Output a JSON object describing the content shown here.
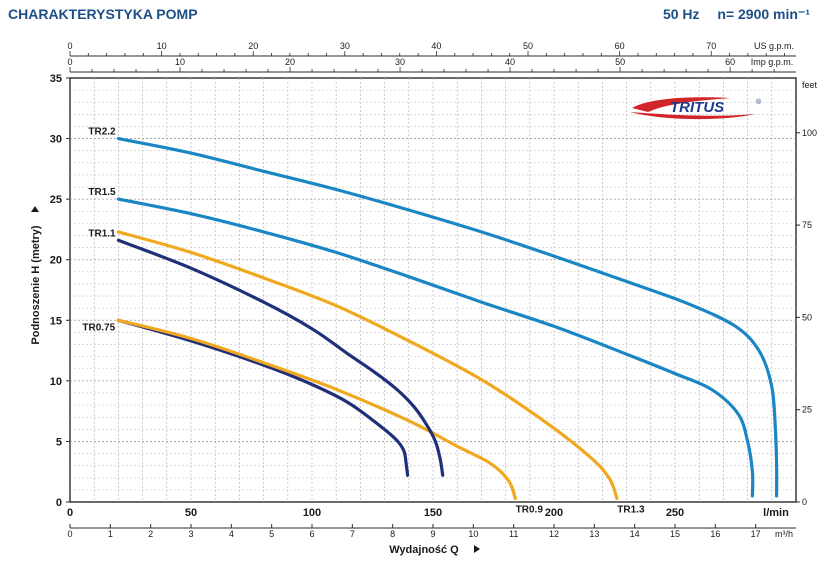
{
  "header": {
    "title": "CHARAKTERYSTYKA POMP",
    "frequency": "50 Hz",
    "speed": "n= 2900 min⁻¹"
  },
  "logo": {
    "text": "TRITUS",
    "mark": "®"
  },
  "chart_data": {
    "type": "line",
    "title": "CHARAKTERYSTYKA POMP",
    "xlabel": "Wydajność Q",
    "ylabel": "Podnoszenie H  (metry)",
    "xlim": [
      0,
      300
    ],
    "ylim": [
      0,
      35
    ],
    "x_unit": "l/min",
    "y_right_unit": "feet",
    "grid": true,
    "axes": {
      "x_lmin_ticks": [
        "0",
        "50",
        "100",
        "150",
        "200",
        "250"
      ],
      "x_m3h_ticks": [
        "0",
        "1",
        "2",
        "3",
        "4",
        "5",
        "6",
        "7",
        "8",
        "9",
        "10",
        "11",
        "12",
        "13",
        "14",
        "15",
        "16",
        "17"
      ],
      "x_m3h_unit": "m³/h",
      "top_usgpm_ticks": [
        "0",
        "10",
        "20",
        "30",
        "40",
        "50",
        "60",
        "70"
      ],
      "top_usgpm_unit": "US g.p.m.",
      "top_impgpm_ticks": [
        "0",
        "10",
        "20",
        "30",
        "40",
        "50",
        "60"
      ],
      "top_impgpm_unit": "Imp g.p.m.",
      "y_ticks": [
        "0",
        "5",
        "10",
        "15",
        "20",
        "25",
        "30",
        "35"
      ],
      "y_feet_ticks": [
        "0",
        "25",
        "50",
        "75",
        "100"
      ]
    },
    "series": [
      {
        "name": "TR0.75",
        "color": "#1f2f7a",
        "points": [
          [
            20,
            15
          ],
          [
            50,
            13.3
          ],
          [
            80,
            11.3
          ],
          [
            100,
            9.7
          ],
          [
            115,
            8.2
          ],
          [
            128,
            6.3
          ],
          [
            135,
            5.1
          ],
          [
            138,
            4.2
          ],
          [
            139,
            3
          ],
          [
            139.5,
            2.2
          ]
        ]
      },
      {
        "name": "TR0.9",
        "color": "#f0a81f",
        "points": [
          [
            20,
            15
          ],
          [
            50,
            13.5
          ],
          [
            80,
            11.5
          ],
          [
            110,
            9.3
          ],
          [
            140,
            6.7
          ],
          [
            160,
            4.6
          ],
          [
            172,
            3.4
          ],
          [
            178,
            2.5
          ],
          [
            182,
            1.5
          ],
          [
            184,
            0.3
          ]
        ]
      },
      {
        "name": "TR1.1",
        "color": "#1f2f7a",
        "points": [
          [
            20,
            21.6
          ],
          [
            50,
            19.3
          ],
          [
            80,
            16.5
          ],
          [
            100,
            14.3
          ],
          [
            115,
            12.2
          ],
          [
            126,
            10.7
          ],
          [
            135,
            9.3
          ],
          [
            142,
            7.9
          ],
          [
            147,
            6.5
          ],
          [
            151,
            5
          ],
          [
            153,
            3.5
          ],
          [
            154,
            2.2
          ]
        ]
      },
      {
        "name": "TR1.3",
        "color": "#f0a81f",
        "points": [
          [
            20,
            22.3
          ],
          [
            50,
            20.6
          ],
          [
            80,
            18.5
          ],
          [
            110,
            16.2
          ],
          [
            140,
            13.3
          ],
          [
            170,
            10.1
          ],
          [
            195,
            6.8
          ],
          [
            215,
            3.7
          ],
          [
            223,
            1.9
          ],
          [
            226,
            0.3
          ]
        ]
      },
      {
        "name": "TR1.5",
        "color": "#1a86c4",
        "points": [
          [
            20,
            25
          ],
          [
            50,
            23.8
          ],
          [
            80,
            22.3
          ],
          [
            110,
            20.6
          ],
          [
            140,
            18.6
          ],
          [
            170,
            16.5
          ],
          [
            200,
            14.5
          ],
          [
            230,
            12.2
          ],
          [
            250,
            10.6
          ],
          [
            265,
            9.3
          ],
          [
            276,
            7.3
          ],
          [
            280,
            5
          ],
          [
            282,
            2.5
          ],
          [
            282,
            0.5
          ]
        ]
      },
      {
        "name": "TR2.2",
        "color": "#1a86c4",
        "points": [
          [
            20,
            30
          ],
          [
            50,
            28.8
          ],
          [
            80,
            27.3
          ],
          [
            110,
            25.8
          ],
          [
            140,
            24.1
          ],
          [
            170,
            22.3
          ],
          [
            200,
            20.3
          ],
          [
            230,
            18.2
          ],
          [
            255,
            16.4
          ],
          [
            275,
            14.5
          ],
          [
            285,
            12.4
          ],
          [
            290,
            9.5
          ],
          [
            291.5,
            6
          ],
          [
            292,
            3
          ],
          [
            292,
            0.5
          ]
        ]
      }
    ]
  }
}
